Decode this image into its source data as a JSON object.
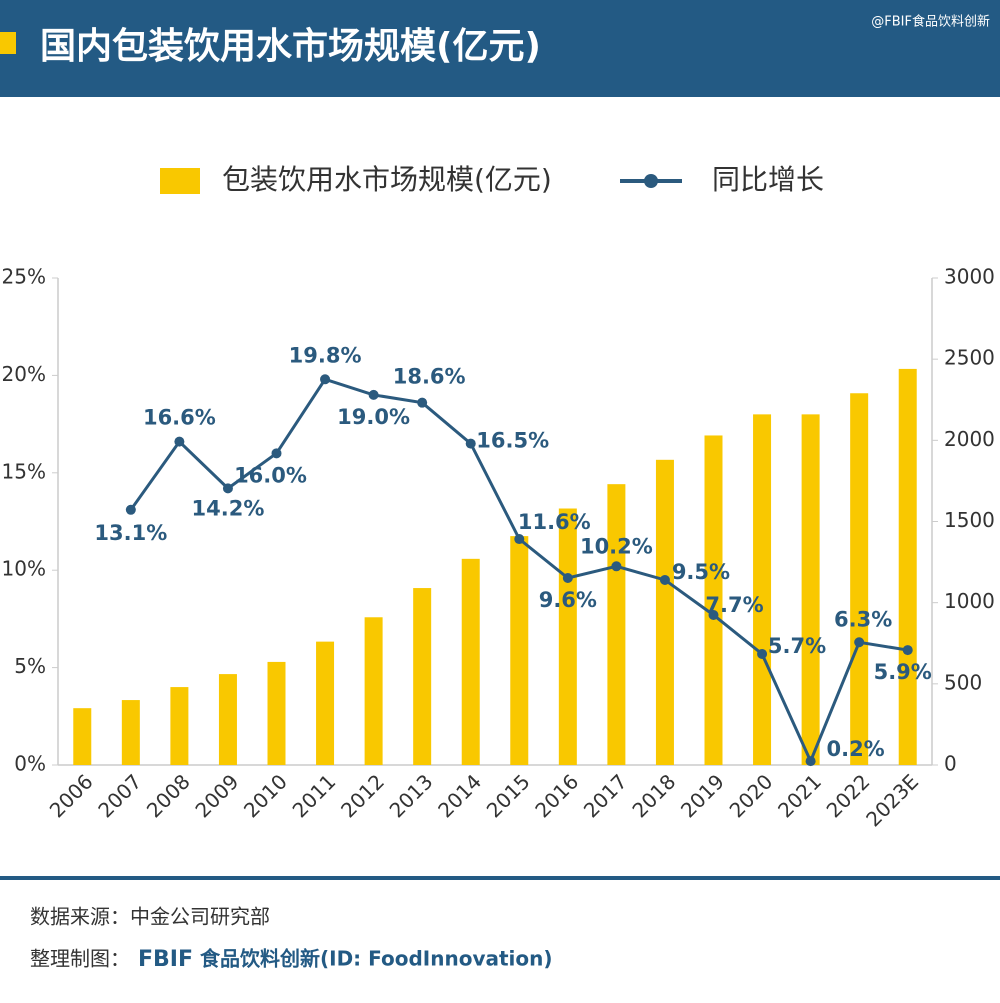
{
  "chart_data": {
    "type": "combo",
    "title": "国内包装饮用水市场规模(亿元)",
    "watermark": "@FBIF食品饮料创新",
    "categories": [
      "2006",
      "2007",
      "2008",
      "2009",
      "2010",
      "2011",
      "2012",
      "2013",
      "2014",
      "2015",
      "2016",
      "2017",
      "2018",
      "2019",
      "2020",
      "2021",
      "2022",
      "2023E"
    ],
    "series": [
      {
        "name": "包装饮用水市场规模(亿元)",
        "type": "bar",
        "axis": "y2",
        "color": "#f9c800",
        "values": [
          350,
          400,
          480,
          560,
          635,
          760,
          910,
          1090,
          1270,
          1410,
          1580,
          1730,
          1880,
          2030,
          2160,
          2160,
          2290,
          2440
        ]
      },
      {
        "name": "同比增长",
        "type": "line",
        "axis": "y",
        "color": "#2b5a7e",
        "values": [
          null,
          13.1,
          16.6,
          14.2,
          16.0,
          19.8,
          19.0,
          18.6,
          16.5,
          11.6,
          9.6,
          10.2,
          9.5,
          7.7,
          5.7,
          0.2,
          6.3,
          5.9
        ],
        "value_labels": [
          null,
          "13.1%",
          "16.6%",
          "14.2%",
          "16.0%",
          "19.8%",
          "19.0%",
          "18.6%",
          "16.5%",
          "11.6%",
          "9.6%",
          "10.2%",
          "9.5%",
          "7.7%",
          "5.7%",
          "0.2%",
          "6.3%",
          "5.9%"
        ]
      }
    ],
    "ylim": [
      0,
      25
    ],
    "yticks": [
      {
        "value": 0,
        "label": "0%"
      },
      {
        "value": 5,
        "label": "5%"
      },
      {
        "value": 10,
        "label": "10%"
      },
      {
        "value": 15,
        "label": "15%"
      },
      {
        "value": 20,
        "label": "20%"
      },
      {
        "value": 25,
        "label": "25%"
      }
    ],
    "y2lim": [
      0,
      3000
    ],
    "y2ticks": [
      0,
      500,
      1000,
      1500,
      2000,
      2500,
      3000
    ],
    "legend": "top",
    "source": "数据来源：中金公司研究部",
    "credit_prefix": "整理制图：",
    "credit_brand": "FBIF",
    "credit_text": "食品饮料创新(ID: FoodInnovation)"
  }
}
